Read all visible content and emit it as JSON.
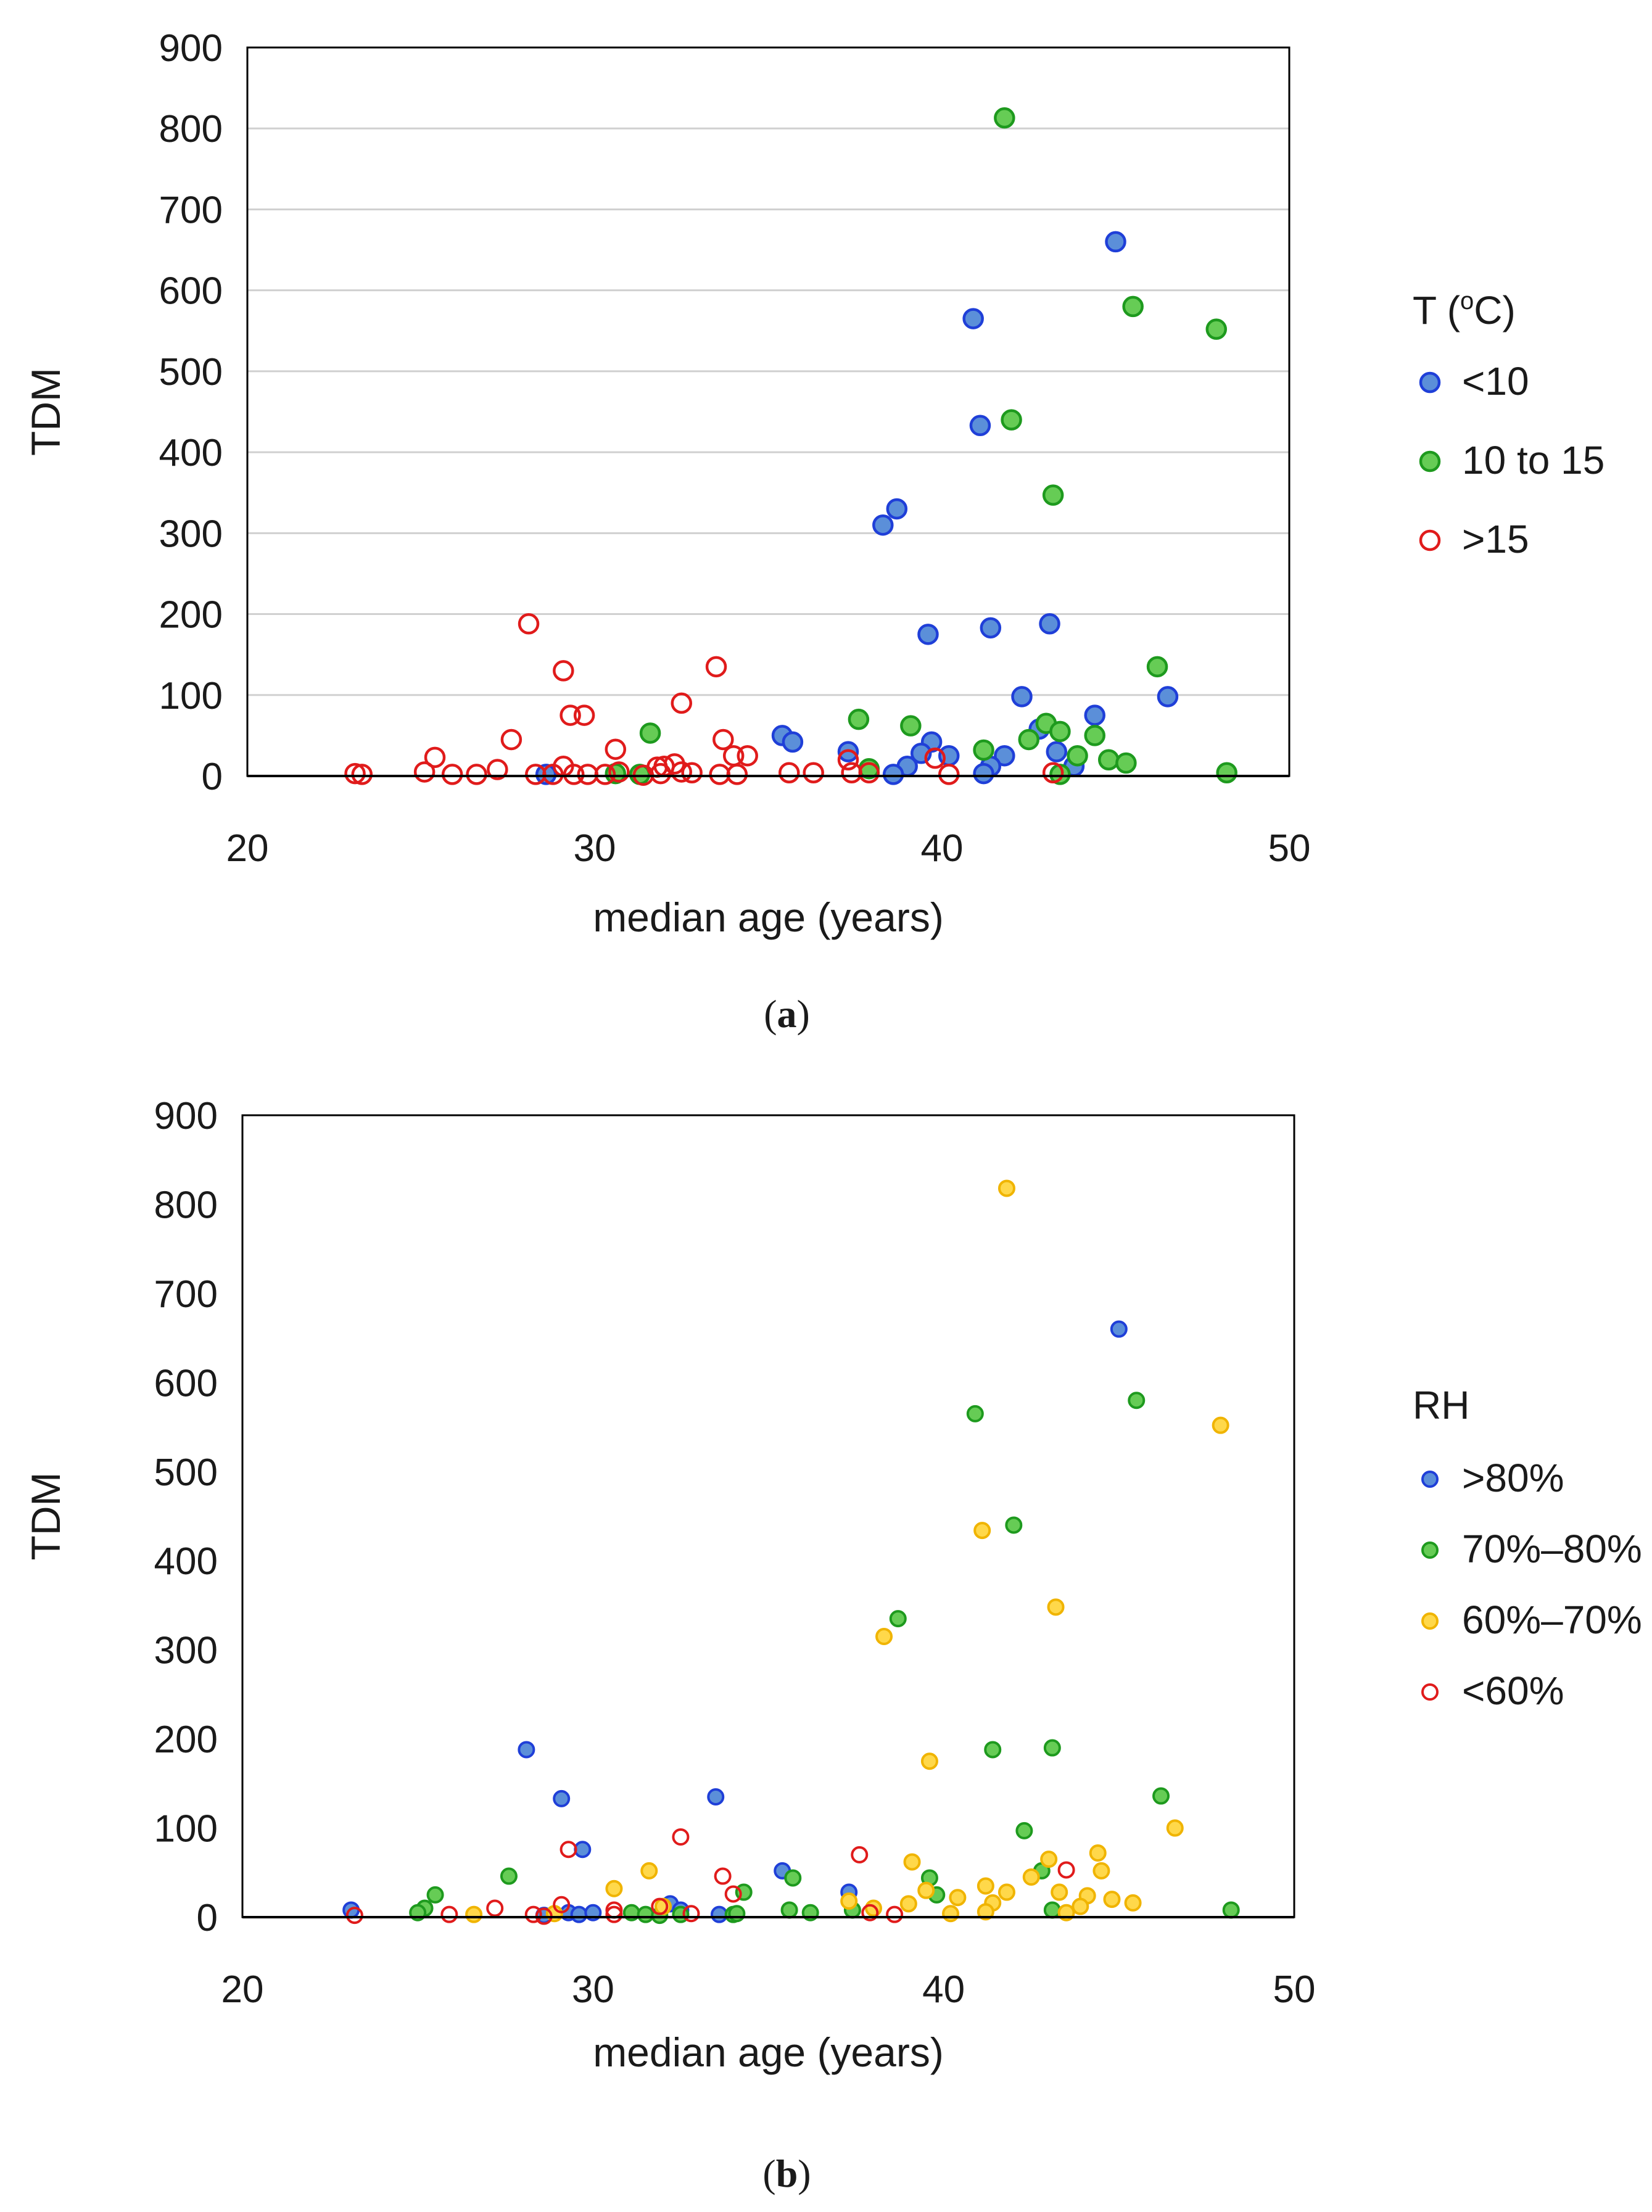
{
  "chart_data": [
    {
      "type": "scatter",
      "panel": "a",
      "caption_label": "a",
      "title": "",
      "xlabel": "median age (years)",
      "ylabel": "TDM",
      "xlim": [
        20,
        50
      ],
      "ylim": [
        0,
        900
      ],
      "xticks": [
        "20",
        "30",
        "40",
        "50"
      ],
      "yticks": [
        "0",
        "100",
        "200",
        "300",
        "400",
        "500",
        "600",
        "700",
        "800",
        "900"
      ],
      "grid": "horizontal",
      "legend": {
        "title_main": "T (",
        "title_sup": "o",
        "title_end": "C)",
        "placement": "right"
      },
      "series": [
        {
          "name": "<10",
          "stroke": "#1f3fd8",
          "fill": "#5b8fd9",
          "hollow": false,
          "points": [
            [
              45.0,
              660
            ],
            [
              40.9,
              565
            ],
            [
              41.1,
              433
            ],
            [
              38.7,
              330
            ],
            [
              38.3,
              310
            ],
            [
              43.1,
              188
            ],
            [
              41.4,
              183
            ],
            [
              39.6,
              175
            ],
            [
              42.3,
              98
            ],
            [
              44.4,
              75
            ],
            [
              46.5,
              98
            ],
            [
              35.4,
              50
            ],
            [
              35.7,
              42
            ],
            [
              37.3,
              30
            ],
            [
              39.7,
              42
            ],
            [
              39.4,
              28
            ],
            [
              40.2,
              25
            ],
            [
              41.8,
              25
            ],
            [
              43.3,
              30
            ],
            [
              42.8,
              58
            ],
            [
              43.8,
              12
            ],
            [
              41.4,
              12
            ],
            [
              39.0,
              12
            ],
            [
              41.2,
              3
            ],
            [
              38.6,
              2
            ],
            [
              28.6,
              2
            ]
          ]
        },
        {
          "name": "10 to 15",
          "stroke": "#1e9a1e",
          "fill": "#66cc55",
          "hollow": false,
          "points": [
            [
              41.8,
              813
            ],
            [
              45.5,
              580
            ],
            [
              47.9,
              552
            ],
            [
              42.0,
              440
            ],
            [
              43.2,
              347
            ],
            [
              46.2,
              135
            ],
            [
              37.6,
              70
            ],
            [
              39.1,
              62
            ],
            [
              31.6,
              53
            ],
            [
              43.0,
              65
            ],
            [
              43.4,
              55
            ],
            [
              44.4,
              50
            ],
            [
              42.5,
              45
            ],
            [
              41.2,
              32
            ],
            [
              43.9,
              25
            ],
            [
              44.8,
              20
            ],
            [
              45.3,
              16
            ],
            [
              37.9,
              9
            ],
            [
              48.2,
              4
            ],
            [
              30.6,
              3
            ],
            [
              31.3,
              2
            ],
            [
              43.4,
              2
            ]
          ]
        },
        {
          "name": ">15",
          "stroke": "#e01b1b",
          "fill": "none",
          "hollow": true,
          "points": [
            [
              28.1,
              188
            ],
            [
              33.5,
              135
            ],
            [
              29.1,
              130
            ],
            [
              32.5,
              90
            ],
            [
              29.3,
              75
            ],
            [
              29.7,
              75
            ],
            [
              27.6,
              45
            ],
            [
              33.7,
              45
            ],
            [
              30.6,
              33
            ],
            [
              34.0,
              25
            ],
            [
              34.4,
              25
            ],
            [
              25.4,
              23
            ],
            [
              32.3,
              15
            ],
            [
              37.3,
              20
            ],
            [
              39.8,
              22
            ],
            [
              31.8,
              11
            ],
            [
              32.0,
              12
            ],
            [
              29.1,
              12
            ],
            [
              27.2,
              8
            ],
            [
              30.7,
              5
            ],
            [
              25.1,
              5
            ],
            [
              31.9,
              3
            ],
            [
              32.5,
              5
            ],
            [
              32.8,
              4
            ],
            [
              35.6,
              4
            ],
            [
              36.3,
              4
            ],
            [
              37.4,
              4
            ],
            [
              37.9,
              4
            ],
            [
              23.1,
              3
            ],
            [
              23.3,
              2
            ],
            [
              26.6,
              2
            ],
            [
              25.9,
              2
            ],
            [
              28.3,
              2
            ],
            [
              28.8,
              2
            ],
            [
              29.4,
              2
            ],
            [
              29.8,
              2
            ],
            [
              30.3,
              2
            ],
            [
              31.4,
              1
            ],
            [
              33.6,
              2
            ],
            [
              34.1,
              2
            ],
            [
              40.2,
              2
            ],
            [
              43.2,
              4
            ]
          ]
        }
      ]
    },
    {
      "type": "scatter",
      "panel": "b",
      "caption_label": "b",
      "title": "",
      "xlabel": "median age (years)",
      "ylabel": "TDM",
      "xlim": [
        20,
        50
      ],
      "ylim": [
        0,
        900
      ],
      "xticks": [
        "20",
        "30",
        "40",
        "50"
      ],
      "yticks": [
        "0",
        "100",
        "200",
        "300",
        "400",
        "500",
        "600",
        "700",
        "800",
        "900"
      ],
      "grid": "none",
      "legend": {
        "title_main": "RH",
        "title_sup": "",
        "title_end": "",
        "placement": "right"
      },
      "series": [
        {
          "name": ">80%",
          "stroke": "#1f3fd8",
          "fill": "#5b8fd9",
          "hollow": false,
          "points": [
            [
              45.0,
              660
            ],
            [
              28.1,
              188
            ],
            [
              29.1,
              133
            ],
            [
              33.5,
              135
            ],
            [
              29.7,
              76
            ],
            [
              35.4,
              52
            ],
            [
              37.3,
              28
            ],
            [
              23.1,
              8
            ],
            [
              29.3,
              5
            ],
            [
              29.6,
              3
            ],
            [
              30.0,
              5
            ],
            [
              32.2,
              15
            ],
            [
              32.5,
              8
            ],
            [
              33.6,
              3
            ],
            [
              28.6,
              2
            ]
          ]
        },
        {
          "name": "70%–80%",
          "stroke": "#1e9a1e",
          "fill": "#66cc55",
          "hollow": false,
          "points": [
            [
              40.9,
              565
            ],
            [
              45.5,
              580
            ],
            [
              42.0,
              440
            ],
            [
              38.7,
              335
            ],
            [
              41.4,
              188
            ],
            [
              43.1,
              190
            ],
            [
              46.2,
              136
            ],
            [
              42.3,
              97
            ],
            [
              27.6,
              46
            ],
            [
              35.7,
              44
            ],
            [
              39.6,
              44
            ],
            [
              42.8,
              52
            ],
            [
              34.3,
              28
            ],
            [
              25.5,
              25
            ],
            [
              39.8,
              25
            ],
            [
              25.2,
              10
            ],
            [
              25.0,
              5
            ],
            [
              31.1,
              5
            ],
            [
              31.5,
              3
            ],
            [
              31.9,
              2
            ],
            [
              32.5,
              3
            ],
            [
              34.0,
              3
            ],
            [
              34.1,
              4
            ],
            [
              35.6,
              8
            ],
            [
              36.2,
              5
            ],
            [
              37.4,
              8
            ],
            [
              43.1,
              8
            ],
            [
              48.2,
              8
            ]
          ]
        },
        {
          "name": "60%–70%",
          "stroke": "#f0b400",
          "fill": "#ffd84a",
          "hollow": false,
          "points": [
            [
              41.8,
              818
            ],
            [
              47.9,
              552
            ],
            [
              41.1,
              434
            ],
            [
              43.2,
              348
            ],
            [
              38.3,
              315
            ],
            [
              39.6,
              175
            ],
            [
              46.6,
              100
            ],
            [
              44.4,
              72
            ],
            [
              43.0,
              65
            ],
            [
              39.1,
              62
            ],
            [
              31.6,
              52
            ],
            [
              44.5,
              52
            ],
            [
              42.5,
              45
            ],
            [
              30.6,
              32
            ],
            [
              41.2,
              35
            ],
            [
              39.5,
              30
            ],
            [
              41.8,
              28
            ],
            [
              43.3,
              28
            ],
            [
              40.4,
              22
            ],
            [
              44.1,
              24
            ],
            [
              44.8,
              20
            ],
            [
              45.4,
              16
            ],
            [
              41.4,
              16
            ],
            [
              37.3,
              18
            ],
            [
              39.0,
              15
            ],
            [
              38.0,
              10
            ],
            [
              43.9,
              12
            ],
            [
              26.6,
              3
            ],
            [
              40.2,
              4
            ],
            [
              41.2,
              6
            ],
            [
              43.5,
              5
            ],
            [
              32.0,
              12
            ],
            [
              28.9,
              4
            ]
          ]
        },
        {
          "name": "<60%",
          "stroke": "#e01b1b",
          "fill": "none",
          "hollow": true,
          "points": [
            [
              32.5,
              90
            ],
            [
              29.3,
              76
            ],
            [
              37.6,
              70
            ],
            [
              33.7,
              46
            ],
            [
              43.5,
              53
            ],
            [
              34.0,
              26
            ],
            [
              29.1,
              14
            ],
            [
              31.9,
              12
            ],
            [
              27.2,
              10
            ],
            [
              30.6,
              8
            ],
            [
              30.6,
              3
            ],
            [
              23.2,
              2
            ],
            [
              25.9,
              3
            ],
            [
              28.3,
              3
            ],
            [
              28.6,
              1
            ],
            [
              32.8,
              4
            ],
            [
              37.9,
              5
            ],
            [
              38.6,
              3
            ]
          ]
        }
      ]
    }
  ]
}
